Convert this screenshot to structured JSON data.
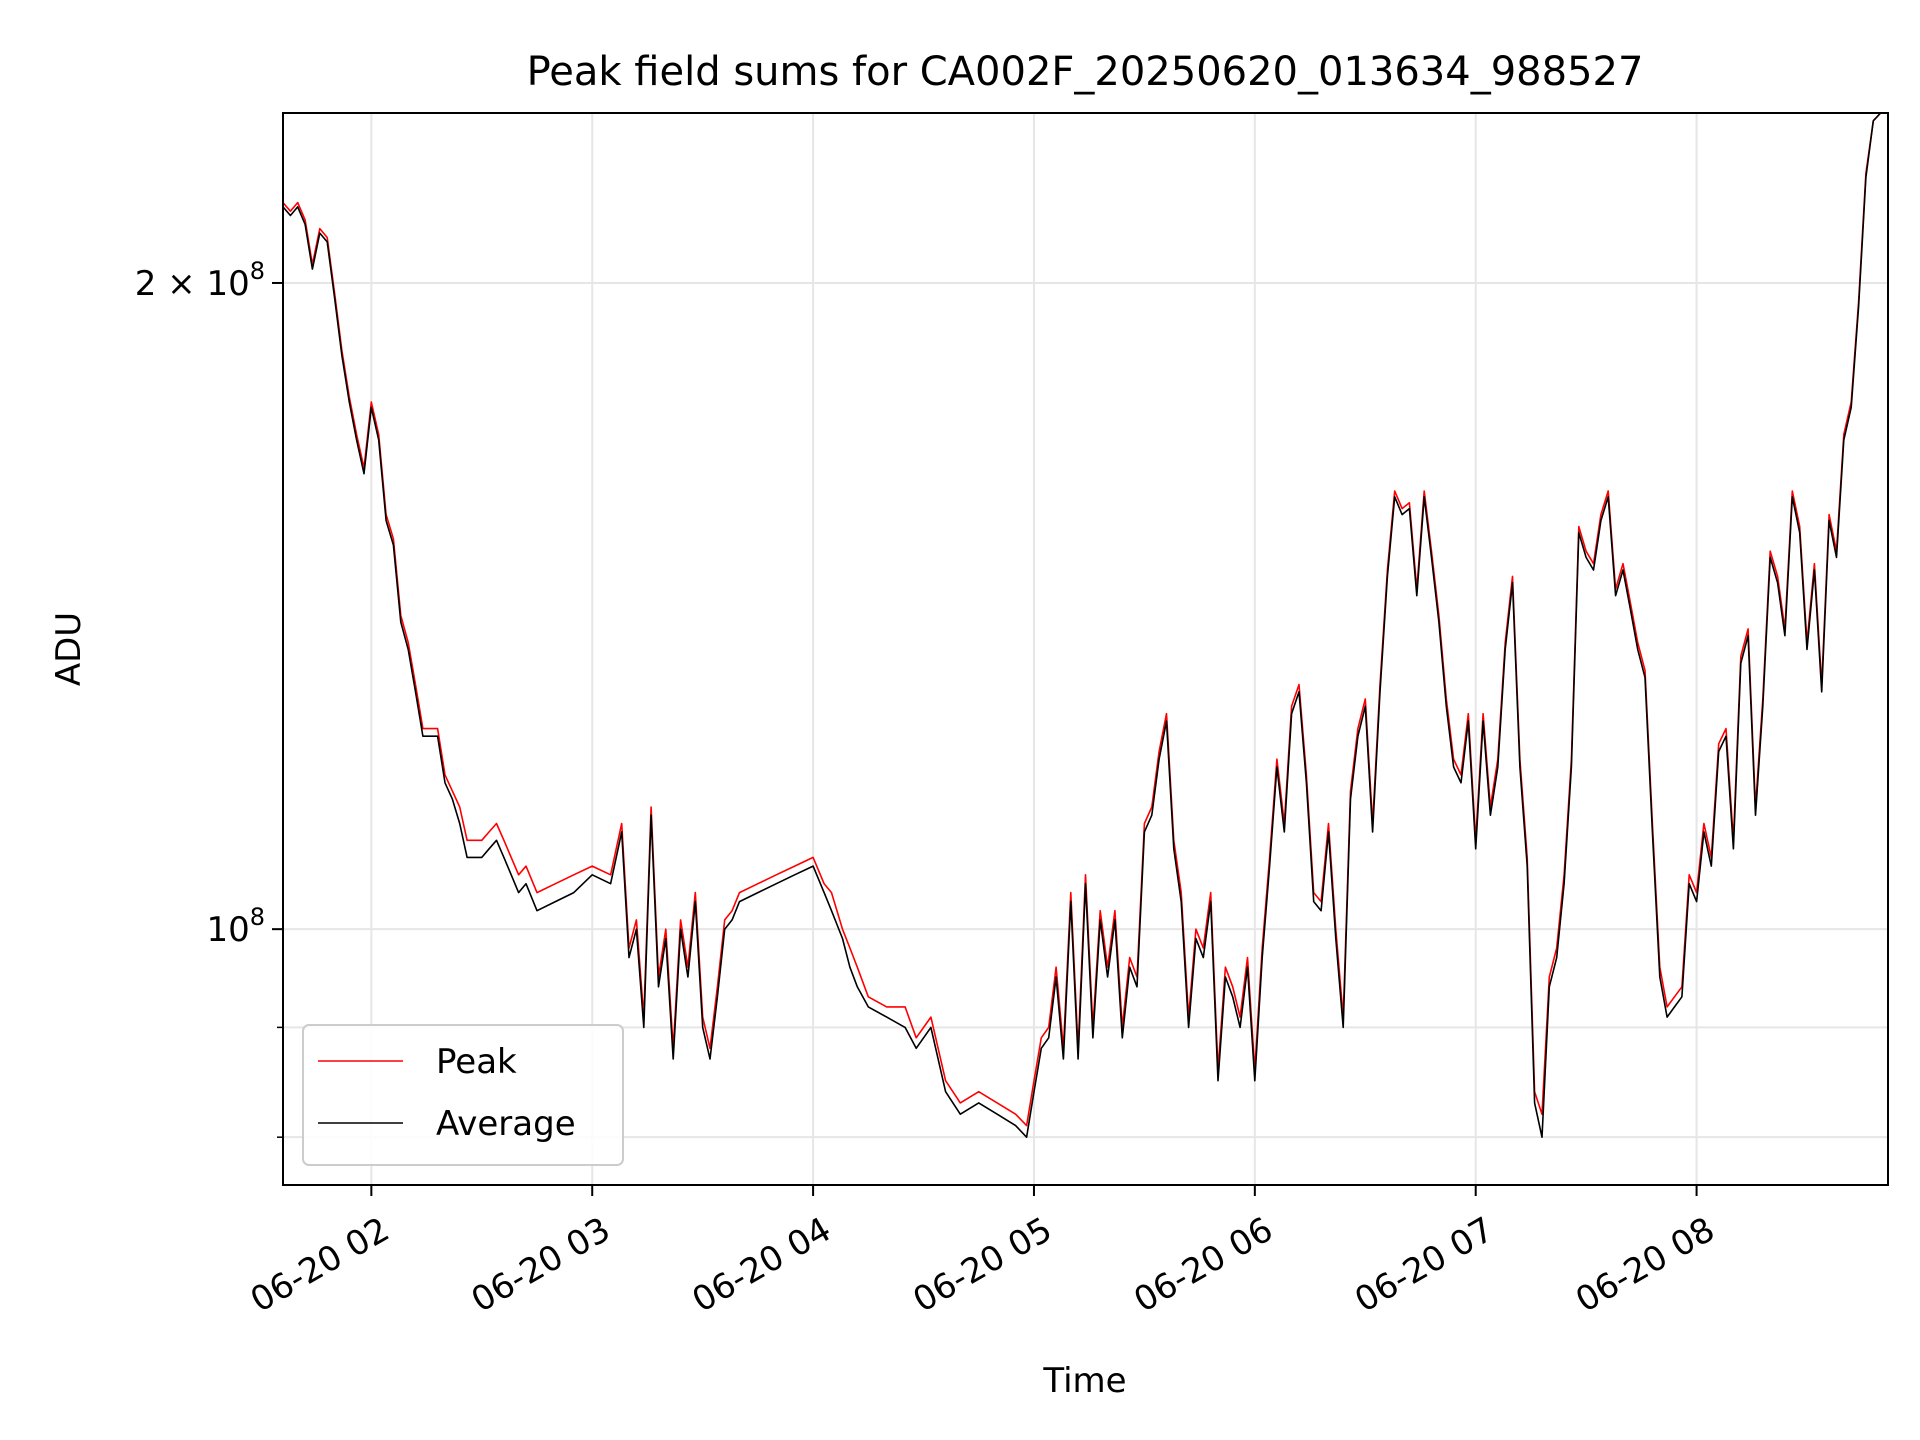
{
  "chart_data": {
    "type": "line",
    "title": "Peak field sums for CA002F_20250620_013634_988527",
    "xlabel": "Time",
    "ylabel": "ADU",
    "y_scale": "log",
    "ylim": [
      76000000,
      240000000
    ],
    "xlim": [
      "2025-06-20 01:36",
      "2025-06-20 08:52"
    ],
    "grid": true,
    "legend_position": "lower-left",
    "x_ticks": [
      {
        "t": "2025-06-20 02:00",
        "label": "06-20 02"
      },
      {
        "t": "2025-06-20 03:00",
        "label": "06-20 03"
      },
      {
        "t": "2025-06-20 04:00",
        "label": "06-20 04"
      },
      {
        "t": "2025-06-20 05:00",
        "label": "06-20 05"
      },
      {
        "t": "2025-06-20 06:00",
        "label": "06-20 06"
      },
      {
        "t": "2025-06-20 07:00",
        "label": "06-20 07"
      },
      {
        "t": "2025-06-20 08:00",
        "label": "06-20 08"
      }
    ],
    "y_ticks": [
      {
        "value": 100000000,
        "base": "10",
        "exp": "8"
      },
      {
        "value": 200000000,
        "base": "2 × 10",
        "exp": "8"
      }
    ],
    "y_minor_ticks": [
      80000000,
      90000000
    ],
    "x": [
      "01:36",
      "01:38",
      "01:40",
      "01:42",
      "01:44",
      "01:46",
      "01:48",
      "01:50",
      "01:52",
      "01:54",
      "01:56",
      "01:58",
      "02:00",
      "02:02",
      "02:04",
      "02:06",
      "02:08",
      "02:10",
      "02:12",
      "02:14",
      "02:16",
      "02:18",
      "02:20",
      "02:22",
      "02:24",
      "02:26",
      "02:28",
      "02:30",
      "02:32",
      "02:34",
      "02:36",
      "02:38",
      "02:40",
      "02:42",
      "02:45",
      "02:50",
      "02:55",
      "03:00",
      "03:05",
      "03:08",
      "03:10",
      "03:12",
      "03:14",
      "03:16",
      "03:18",
      "03:20",
      "03:22",
      "03:24",
      "03:26",
      "03:28",
      "03:30",
      "03:32",
      "03:34",
      "03:36",
      "03:38",
      "03:40",
      "03:45",
      "03:50",
      "03:55",
      "04:00",
      "04:03",
      "04:05",
      "04:08",
      "04:10",
      "04:12",
      "04:15",
      "04:20",
      "04:25",
      "04:28",
      "04:32",
      "04:36",
      "04:40",
      "04:45",
      "04:50",
      "04:55",
      "04:58",
      "05:00",
      "05:02",
      "05:04",
      "05:06",
      "05:08",
      "05:10",
      "05:12",
      "05:14",
      "05:16",
      "05:18",
      "05:20",
      "05:22",
      "05:24",
      "05:26",
      "05:28",
      "05:30",
      "05:32",
      "05:34",
      "05:36",
      "05:38",
      "05:40",
      "05:42",
      "05:44",
      "05:46",
      "05:48",
      "05:50",
      "05:52",
      "05:54",
      "05:56",
      "05:58",
      "06:00",
      "06:02",
      "06:04",
      "06:06",
      "06:08",
      "06:10",
      "06:12",
      "06:14",
      "06:16",
      "06:18",
      "06:20",
      "06:22",
      "06:24",
      "06:26",
      "06:28",
      "06:30",
      "06:32",
      "06:34",
      "06:36",
      "06:38",
      "06:40",
      "06:42",
      "06:44",
      "06:46",
      "06:48",
      "06:50",
      "06:52",
      "06:54",
      "06:56",
      "06:58",
      "07:00",
      "07:02",
      "07:04",
      "07:06",
      "07:08",
      "07:10",
      "07:12",
      "07:14",
      "07:16",
      "07:18",
      "07:20",
      "07:22",
      "07:24",
      "07:26",
      "07:28",
      "07:30",
      "07:32",
      "07:34",
      "07:36",
      "07:38",
      "07:40",
      "07:42",
      "07:44",
      "07:46",
      "07:48",
      "07:50",
      "07:52",
      "07:54",
      "07:56",
      "07:58",
      "08:00",
      "08:02",
      "08:04",
      "08:06",
      "08:08",
      "08:10",
      "08:12",
      "08:14",
      "08:16",
      "08:18",
      "08:20",
      "08:22",
      "08:24",
      "08:26",
      "08:28",
      "08:30",
      "08:32",
      "08:34",
      "08:36",
      "08:38",
      "08:40",
      "08:42",
      "08:44",
      "08:46",
      "08:48",
      "08:50",
      "08:52"
    ],
    "series": [
      {
        "name": "Peak",
        "color": "#ff0000",
        "values": [
          218000000,
          216000000,
          218000000,
          214000000,
          204000000,
          212000000,
          210000000,
          198000000,
          186000000,
          177000000,
          170000000,
          164000000,
          176000000,
          170000000,
          156000000,
          152000000,
          140000000,
          136000000,
          130000000,
          124000000,
          124000000,
          124000000,
          118000000,
          116000000,
          114000000,
          110000000,
          110000000,
          110000000,
          111000000,
          112000000,
          110000000,
          108000000,
          106000000,
          107000000,
          104000000,
          105000000,
          106000000,
          107000000,
          106000000,
          112000000,
          98000000,
          101000000,
          91000000,
          114000000,
          95000000,
          100000000,
          88000000,
          101000000,
          96000000,
          104000000,
          91000000,
          88000000,
          94000000,
          101000000,
          102000000,
          104000000,
          105000000,
          106000000,
          107000000,
          108000000,
          105000000,
          104000000,
          100000000,
          98000000,
          96000000,
          93000000,
          92000000,
          92000000,
          89000000,
          91000000,
          85000000,
          83000000,
          84000000,
          83000000,
          82000000,
          81000000,
          85000000,
          89000000,
          90000000,
          96000000,
          88000000,
          104000000,
          88000000,
          106000000,
          90000000,
          102000000,
          96000000,
          102000000,
          90000000,
          97000000,
          95000000,
          112000000,
          114000000,
          121000000,
          126000000,
          110000000,
          104000000,
          91000000,
          100000000,
          98000000,
          104000000,
          86000000,
          96000000,
          94000000,
          91000000,
          97000000,
          86000000,
          98000000,
          108000000,
          120000000,
          112000000,
          127000000,
          130000000,
          118000000,
          104000000,
          103000000,
          112000000,
          100000000,
          91000000,
          116000000,
          124000000,
          128000000,
          112000000,
          130000000,
          147000000,
          160000000,
          157000000,
          158000000,
          144000000,
          160000000,
          150000000,
          140000000,
          128000000,
          120000000,
          118000000,
          126000000,
          110000000,
          126000000,
          114000000,
          120000000,
          136000000,
          146000000,
          120000000,
          108000000,
          84000000,
          82000000,
          95000000,
          98000000,
          106000000,
          120000000,
          154000000,
          150000000,
          148000000,
          156000000,
          160000000,
          144000000,
          148000000,
          142000000,
          136000000,
          132000000,
          112000000,
          96000000,
          92000000,
          93000000,
          94000000,
          106000000,
          104000000,
          112000000,
          108000000,
          122000000,
          124000000,
          110000000,
          134000000,
          138000000,
          114000000,
          128000000,
          150000000,
          146000000,
          138000000,
          160000000,
          154000000,
          136000000,
          148000000,
          130000000,
          156000000,
          150000000,
          170000000,
          176000000,
          196000000,
          225000000,
          238000000,
          240000000,
          240000000
        ]
      },
      {
        "name": "Average",
        "color": "#000000",
        "values": [
          217000000,
          215000000,
          217000000,
          213000000,
          203000000,
          211000000,
          209000000,
          197000000,
          185000000,
          176000000,
          169000000,
          163000000,
          175000000,
          169000000,
          155000000,
          151000000,
          139000000,
          135000000,
          129000000,
          123000000,
          123000000,
          123000000,
          117000000,
          115000000,
          112000000,
          108000000,
          108000000,
          108000000,
          109000000,
          110000000,
          108000000,
          106000000,
          104000000,
          105000000,
          102000000,
          103000000,
          104000000,
          106000000,
          105000000,
          111000000,
          97000000,
          100000000,
          90000000,
          113000000,
          94000000,
          99000000,
          87000000,
          100000000,
          95000000,
          103000000,
          90000000,
          87000000,
          93000000,
          100000000,
          101000000,
          103000000,
          104000000,
          105000000,
          106000000,
          107000000,
          104000000,
          102000000,
          99000000,
          96000000,
          94000000,
          92000000,
          91000000,
          90000000,
          88000000,
          90000000,
          84000000,
          82000000,
          83000000,
          82000000,
          81000000,
          80000000,
          84000000,
          88000000,
          89000000,
          95000000,
          87000000,
          103000000,
          87000000,
          105000000,
          89000000,
          101000000,
          95000000,
          101000000,
          89000000,
          96000000,
          94000000,
          111000000,
          113000000,
          120000000,
          125000000,
          109000000,
          103000000,
          90000000,
          99000000,
          97000000,
          103000000,
          85000000,
          95000000,
          93000000,
          90000000,
          96000000,
          85000000,
          97000000,
          107000000,
          119000000,
          111000000,
          126000000,
          129000000,
          117000000,
          103000000,
          102000000,
          111000000,
          99000000,
          90000000,
          115000000,
          123000000,
          127000000,
          111000000,
          129000000,
          146000000,
          159000000,
          156000000,
          157000000,
          143000000,
          159000000,
          149000000,
          139000000,
          127000000,
          119000000,
          117000000,
          125000000,
          109000000,
          125000000,
          113000000,
          119000000,
          135000000,
          145000000,
          119000000,
          107000000,
          83000000,
          80000000,
          94000000,
          97000000,
          105000000,
          119000000,
          153000000,
          149000000,
          147000000,
          155000000,
          159000000,
          143000000,
          147000000,
          141000000,
          135000000,
          131000000,
          111000000,
          95000000,
          91000000,
          92000000,
          93000000,
          105000000,
          103000000,
          111000000,
          107000000,
          121000000,
          123000000,
          109000000,
          133000000,
          137000000,
          113000000,
          127000000,
          149000000,
          145000000,
          137000000,
          159000000,
          153000000,
          135000000,
          147000000,
          129000000,
          155000000,
          149000000,
          169000000,
          175000000,
          195000000,
          224000000,
          238000000,
          240000000,
          240000000
        ]
      }
    ]
  }
}
